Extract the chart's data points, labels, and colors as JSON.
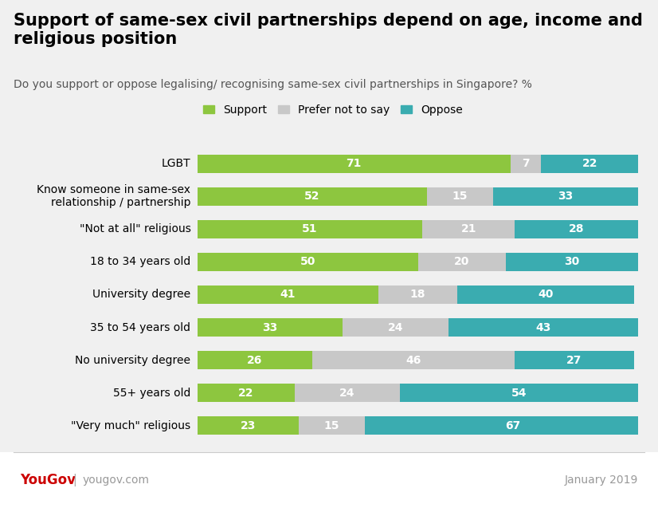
{
  "title": "Support of same-sex civil partnerships depend on age, income and\nreligious position",
  "subtitle": "Do you support or oppose legalising/ recognising same-sex civil partnerships in Singapore? %",
  "categories": [
    "LGBT",
    "Know someone in same-sex\nrelationship / partnership",
    "\"Not at all\" religious",
    "18 to 34 years old",
    "University degree",
    "35 to 54 years old",
    "No university degree",
    "55+ years old",
    "\"Very much\" religious"
  ],
  "support": [
    71,
    52,
    51,
    50,
    41,
    33,
    26,
    22,
    23
  ],
  "neutral": [
    7,
    15,
    21,
    20,
    18,
    24,
    46,
    24,
    15
  ],
  "oppose": [
    22,
    33,
    28,
    30,
    40,
    43,
    27,
    54,
    67
  ],
  "support_color": "#8DC63F",
  "neutral_color": "#C8C8C8",
  "oppose_color": "#3AACB0",
  "bar_height": 0.55,
  "background_color": "#F0F0F0",
  "plot_bg_color": "#F0F0F0",
  "footer_bg_color": "#FFFFFF",
  "title_fontsize": 15,
  "subtitle_fontsize": 10,
  "label_fontsize": 10,
  "legend_fontsize": 10,
  "footer_yougov": "YouGov",
  "footer_pipe": " | ",
  "footer_url": "yougov.com",
  "footer_date": "January 2019"
}
